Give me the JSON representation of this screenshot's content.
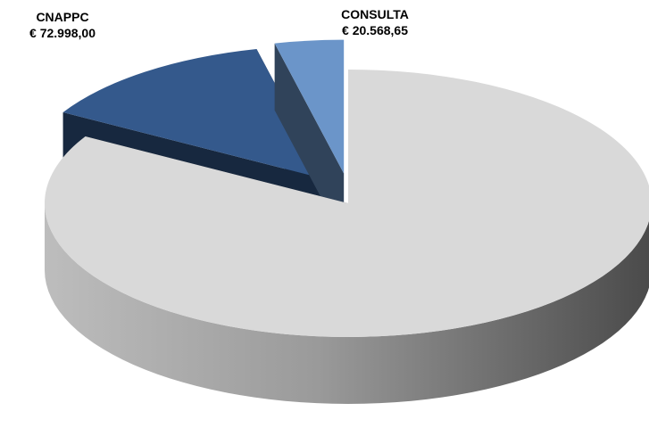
{
  "chart_data": {
    "type": "pie3d",
    "categories": [
      null,
      "CNAPPC",
      "CONSULTA"
    ],
    "values": [
      468000,
      72998,
      20568.65
    ],
    "value_labels": [
      null,
      "€ 72.998,00",
      "€ 20.568,65"
    ],
    "colors": [
      "#d9d9d9",
      "#34598c",
      "#6b95c9"
    ],
    "exploded": [
      false,
      true,
      true
    ]
  }
}
